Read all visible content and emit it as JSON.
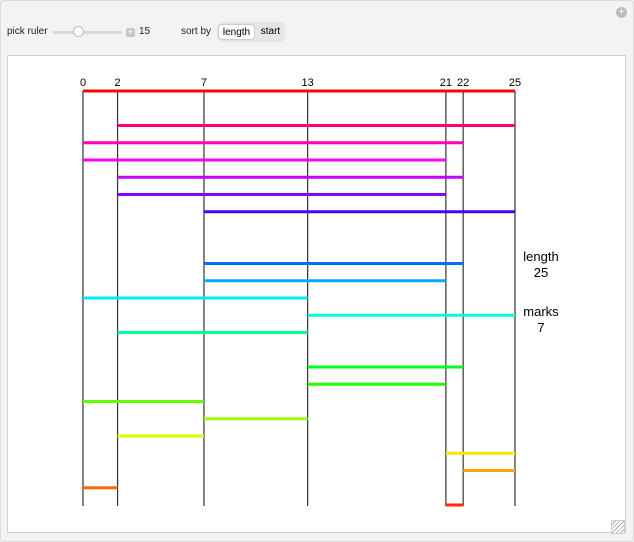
{
  "controls": {
    "pick_ruler_label": "pick ruler",
    "pick_ruler_value": "15",
    "slider_fraction": 0.35,
    "sort_by_label": "sort by",
    "sort_options": [
      "length",
      "start"
    ],
    "sort_selected": "length"
  },
  "chart_data": {
    "type": "diagram",
    "ruler_marks": [
      0,
      2,
      7,
      13,
      21,
      22,
      25
    ],
    "max_length": 25,
    "segments": [
      {
        "start": 0,
        "end": 25
      },
      {
        "start": 2,
        "end": 25
      },
      {
        "start": 0,
        "end": 22
      },
      {
        "start": 0,
        "end": 21
      },
      {
        "start": 2,
        "end": 22
      },
      {
        "start": 2,
        "end": 21
      },
      {
        "start": 7,
        "end": 25
      },
      {
        "start": 7,
        "end": 22
      },
      {
        "start": 7,
        "end": 21
      },
      {
        "start": 0,
        "end": 13
      },
      {
        "start": 13,
        "end": 25
      },
      {
        "start": 2,
        "end": 13
      },
      {
        "start": 13,
        "end": 22
      },
      {
        "start": 13,
        "end": 21
      },
      {
        "start": 0,
        "end": 7
      },
      {
        "start": 7,
        "end": 13
      },
      {
        "start": 2,
        "end": 7
      },
      {
        "start": 21,
        "end": 25
      },
      {
        "start": 22,
        "end": 25
      },
      {
        "start": 0,
        "end": 2
      },
      {
        "start": 21,
        "end": 22
      }
    ]
  },
  "info": {
    "length_label": "length",
    "length_value": "25",
    "marks_label": "marks",
    "marks_value": "7"
  }
}
